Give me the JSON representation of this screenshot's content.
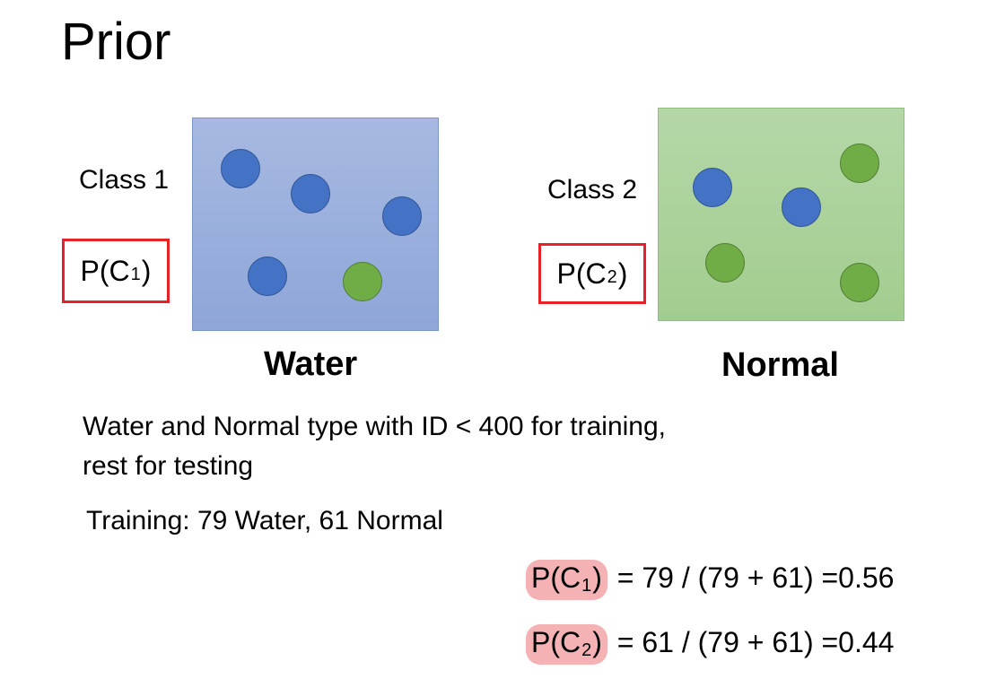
{
  "title": "Prior",
  "class1": {
    "label": "Class 1",
    "prob_main": "P(C",
    "prob_sub": "1",
    "prob_close": ")",
    "caption": "Water"
  },
  "class2": {
    "label": "Class 2",
    "prob_main": "P(C",
    "prob_sub": "2",
    "prob_close": ")",
    "caption": "Normal"
  },
  "description_line1": "Water and Normal type with ID < 400 for training,",
  "description_line2": "rest for testing",
  "training": "Training: 79 Water, 61 Normal",
  "equation1": {
    "p_main": "P(C",
    "p_sub": "1",
    "p_close": ")",
    "rest": " = 79 / (79 + 61) =0.56"
  },
  "equation2": {
    "p_main": "P(C",
    "p_sub": "2",
    "p_close": ")",
    "rest": " = 61 / (79 + 61) =0.44"
  },
  "colors": {
    "blue_ball": "#4472c4",
    "green_ball": "#70ad47",
    "highlight": "#f4b2b4",
    "box_border": "#e8202a"
  }
}
